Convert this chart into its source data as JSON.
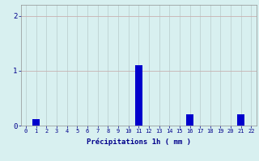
{
  "hours": [
    0,
    1,
    2,
    3,
    4,
    5,
    6,
    7,
    8,
    9,
    10,
    11,
    12,
    13,
    14,
    15,
    16,
    17,
    18,
    19,
    20,
    21,
    22
  ],
  "values": [
    0,
    0.12,
    0,
    0,
    0,
    0,
    0,
    0,
    0,
    0,
    0,
    1.1,
    0,
    0,
    0,
    0,
    0.2,
    0,
    0,
    0,
    0,
    0.2,
    0
  ],
  "bar_color": "#0000cc",
  "background_color": "#d8f0f0",
  "grid_color_h": "#c8b0b0",
  "grid_color_v": "#b8cccc",
  "xlabel": "Précipitations 1h ( mm )",
  "xlabel_color": "#00008b",
  "tick_color": "#00008b",
  "ylim": [
    0,
    2.2
  ],
  "yticks": [
    0,
    1,
    2
  ],
  "xlim": [
    -0.5,
    22.5
  ]
}
